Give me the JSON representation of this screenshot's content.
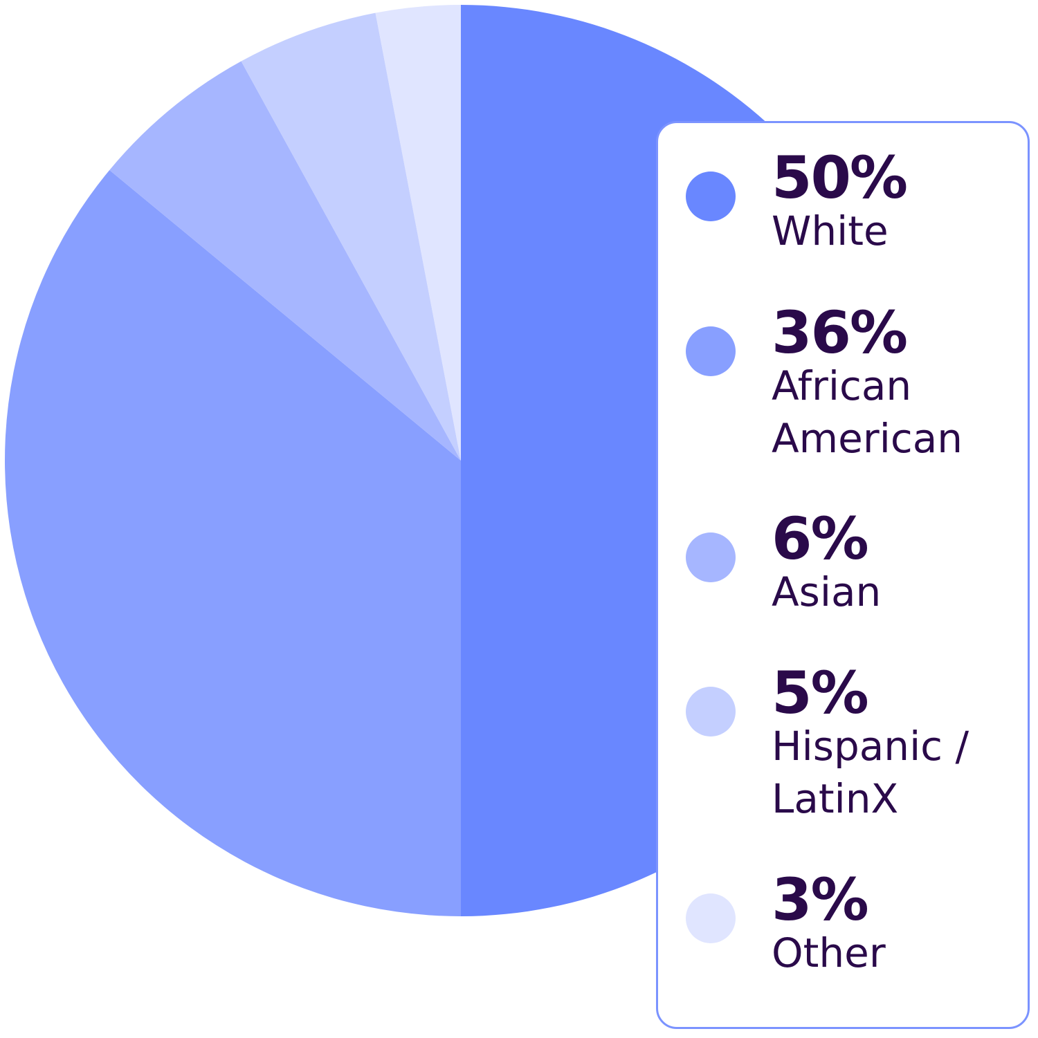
{
  "chart_data": {
    "type": "pie",
    "start": "top",
    "direction": "clockwise",
    "legend_position": "right",
    "slices": [
      {
        "label": "White",
        "value": 50,
        "value_label": "50%",
        "color": "#6987ff"
      },
      {
        "label": "African American",
        "value": 36,
        "value_label": "36%",
        "color": "#889fff"
      },
      {
        "label": "Asian",
        "value": 6,
        "value_label": "6%",
        "color": "#a6b6ff"
      },
      {
        "label": "Hispanic / LatinX",
        "value": 5,
        "value_label": "5%",
        "color": "#c4cfff"
      },
      {
        "label": "Other",
        "value": 3,
        "value_label": "3%",
        "color": "#e0e5ff"
      }
    ]
  }
}
